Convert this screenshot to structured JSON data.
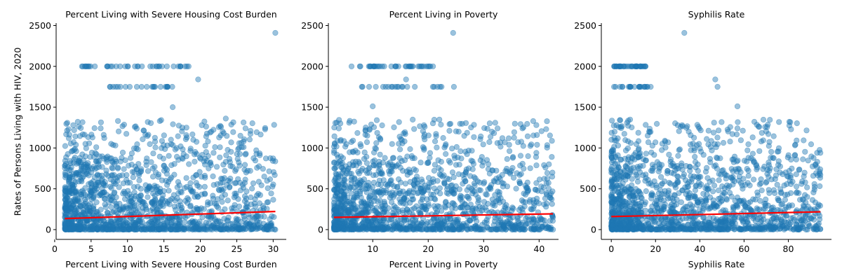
{
  "figure": {
    "ylabel": "Rates of Persons Living with HIV, 2020",
    "point_color": "#1f77b4",
    "point_alpha": 0.45,
    "fit_color": "#ff0000"
  },
  "chart_data": [
    {
      "type": "scatter",
      "title": "Percent Living with Severe Housing Cost Burden",
      "xlabel": "Percent Living with Severe Housing Cost Burden",
      "xlim": [
        0.2,
        31.8
      ],
      "ylim": [
        -120,
        2530
      ],
      "xticks": [
        0,
        5,
        10,
        15,
        20,
        25,
        30
      ],
      "yticks": [
        0,
        500,
        1000,
        1500,
        2000,
        2500
      ],
      "x_range": [
        1.4,
        30.3
      ],
      "cap_values": [
        2000,
        1750
      ],
      "cap_x_range": [
        3.5,
        18.5
      ],
      "cap_x_range_1750": [
        7,
        16.5
      ],
      "outliers": [
        [
          30.3,
          2410
        ],
        [
          19.7,
          1840
        ],
        [
          25.5,
          1150
        ],
        [
          26.2,
          1240
        ],
        [
          23.5,
          1360
        ],
        [
          21.5,
          1200
        ],
        [
          26,
          160
        ],
        [
          26.2,
          60
        ],
        [
          25.3,
          0
        ],
        [
          22.6,
          480
        ],
        [
          23.5,
          830
        ],
        [
          20.2,
          1280
        ],
        [
          20.8,
          950
        ],
        [
          23.8,
          600
        ],
        [
          17.3,
          1020
        ],
        [
          16.2,
          1500
        ]
      ],
      "fit": {
        "x": [
          1.4,
          30.3
        ],
        "y": [
          135,
          222
        ]
      }
    },
    {
      "type": "scatter",
      "title": "Percent Living in Poverty",
      "xlabel": "Percent Living in Poverty",
      "xlim": [
        2,
        43.5
      ],
      "ylim": [
        -120,
        2530
      ],
      "xticks": [
        10,
        20,
        30,
        40
      ],
      "yticks": [
        0,
        500,
        1000,
        1500,
        2000,
        2500
      ],
      "x_range": [
        3,
        42.5
      ],
      "cap_values": [
        2000,
        1750
      ],
      "cap_x_range": [
        6,
        21
      ],
      "cap_x_range_1750": [
        8,
        25.5
      ],
      "outliers": [
        [
          24.5,
          2410
        ],
        [
          16,
          1840
        ],
        [
          25.5,
          1200
        ],
        [
          37,
          1240
        ],
        [
          39.5,
          940
        ],
        [
          42.5,
          150
        ],
        [
          42.5,
          0
        ],
        [
          35,
          720
        ],
        [
          32.5,
          1240
        ],
        [
          31.5,
          1200
        ],
        [
          37.5,
          540
        ],
        [
          10,
          1510
        ]
      ],
      "fit": {
        "x": [
          3,
          42.5
        ],
        "y": [
          150,
          193
        ]
      }
    },
    {
      "type": "scatter",
      "title": "Syphilis Rate",
      "xlabel": "Syphilis Rate",
      "xlim": [
        -4.5,
        99.5
      ],
      "ylim": [
        -120,
        2530
      ],
      "xticks": [
        0,
        20,
        40,
        60,
        80
      ],
      "yticks": [
        0,
        500,
        1000,
        1500,
        2000,
        2500
      ],
      "x_range": [
        0,
        94.5
      ],
      "cap_values": [
        2000,
        1750
      ],
      "cap_x_range": [
        0,
        16
      ],
      "cap_x_range_1750": [
        0,
        18
      ],
      "outliers": [
        [
          33,
          2410
        ],
        [
          47,
          1840
        ],
        [
          48,
          1750
        ],
        [
          57,
          1510
        ],
        [
          57,
          1240
        ],
        [
          94.5,
          940
        ],
        [
          94.5,
          670
        ],
        [
          32,
          1280
        ],
        [
          35,
          1200
        ],
        [
          75,
          550
        ],
        [
          78,
          180
        ],
        [
          80,
          90
        ],
        [
          88,
          0
        ],
        [
          84,
          100
        ],
        [
          62,
          880
        ],
        [
          66,
          760
        ],
        [
          72,
          880
        ]
      ],
      "fit": {
        "x": [
          0,
          94.5
        ],
        "y": [
          160,
          218
        ]
      }
    }
  ]
}
